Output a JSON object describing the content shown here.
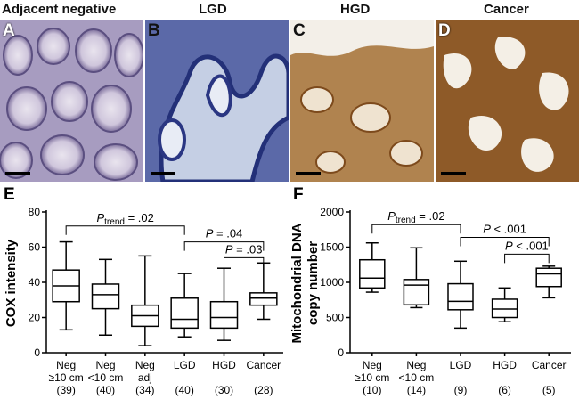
{
  "panels": [
    {
      "letter": "A",
      "title": "Adjacent negative",
      "stain": "blue"
    },
    {
      "letter": "B",
      "title": "LGD",
      "stain": "blue"
    },
    {
      "letter": "C",
      "title": "HGD",
      "stain": "brown-light"
    },
    {
      "letter": "D",
      "title": "Cancer",
      "stain": "brown-dark"
    }
  ],
  "chart_data": [
    {
      "type": "boxplot",
      "panel_letter": "E",
      "ylabel": "COX intensity",
      "ylim": [
        0,
        80
      ],
      "yticks": [
        "0",
        "20",
        "40",
        "60",
        "80"
      ],
      "categories": [
        {
          "line1": "Neg",
          "line2": "≥10 cm",
          "n": "(39)"
        },
        {
          "line1": "Neg",
          "line2": "<10 cm",
          "n": "(40)"
        },
        {
          "line1": "Neg",
          "line2": "adj",
          "n": "(34)"
        },
        {
          "line1": "LGD",
          "line2": "",
          "n": "(40)"
        },
        {
          "line1": "HGD",
          "line2": "",
          "n": "(30)"
        },
        {
          "line1": "Cancer",
          "line2": "",
          "n": "(28)"
        }
      ],
      "boxes": [
        {
          "min": 13,
          "q1": 29,
          "median": 38,
          "q3": 47,
          "max": 63
        },
        {
          "min": 10,
          "q1": 25,
          "median": 33,
          "q3": 39,
          "max": 53
        },
        {
          "min": 4,
          "q1": 15,
          "median": 21,
          "q3": 27,
          "max": 55
        },
        {
          "min": 9,
          "q1": 14,
          "median": 19,
          "q3": 31,
          "max": 45
        },
        {
          "min": 7,
          "q1": 14,
          "median": 20,
          "q3": 29,
          "max": 48
        },
        {
          "min": 19,
          "q1": 27,
          "median": 31,
          "q3": 34,
          "max": 51
        }
      ],
      "annotations": [
        {
          "label": "P",
          "sub": "trend",
          "text": " = .02",
          "from": 0,
          "to": 3,
          "y": 72
        },
        {
          "label": "P",
          "sub": "",
          "text": " = .04",
          "from": 3,
          "to": 5,
          "y": 63
        },
        {
          "label": "P",
          "sub": "",
          "text": " = .03",
          "from": 4,
          "to": 5,
          "y": 54
        }
      ]
    },
    {
      "type": "boxplot",
      "panel_letter": "F",
      "ylabel": "Mitochondrial DNA copy number",
      "ylabel_line1": "Mitochondrial DNA",
      "ylabel_line2": "copy number",
      "ylim": [
        0,
        2000
      ],
      "yticks": [
        "0",
        "500",
        "1000",
        "1500",
        "2000"
      ],
      "categories": [
        {
          "line1": "Neg",
          "line2": "≥10 cm",
          "n": "(10)"
        },
        {
          "line1": "Neg",
          "line2": "<10 cm",
          "n": "(14)"
        },
        {
          "line1": "LGD",
          "line2": "",
          "n": "(9)"
        },
        {
          "line1": "HGD",
          "line2": "",
          "n": "(6)"
        },
        {
          "line1": "Cancer",
          "line2": "",
          "n": "(5)"
        }
      ],
      "boxes": [
        {
          "min": 860,
          "q1": 920,
          "median": 1060,
          "q3": 1320,
          "max": 1560
        },
        {
          "min": 640,
          "q1": 680,
          "median": 960,
          "q3": 1040,
          "max": 1490
        },
        {
          "min": 350,
          "q1": 610,
          "median": 730,
          "q3": 980,
          "max": 1300
        },
        {
          "min": 440,
          "q1": 500,
          "median": 620,
          "q3": 760,
          "max": 920
        },
        {
          "min": 780,
          "q1": 940,
          "median": 1120,
          "q3": 1200,
          "max": 1230
        }
      ],
      "annotations": [
        {
          "label": "P",
          "sub": "trend",
          "text": " = .02",
          "from": 0,
          "to": 2,
          "y": 1820
        },
        {
          "label": "P",
          "sub": "",
          "text": " < .001",
          "from": 2,
          "to": 4,
          "y": 1640
        },
        {
          "label": "P",
          "sub": "",
          "text": " < .001",
          "from": 3,
          "to": 4,
          "y": 1400
        }
      ]
    }
  ]
}
